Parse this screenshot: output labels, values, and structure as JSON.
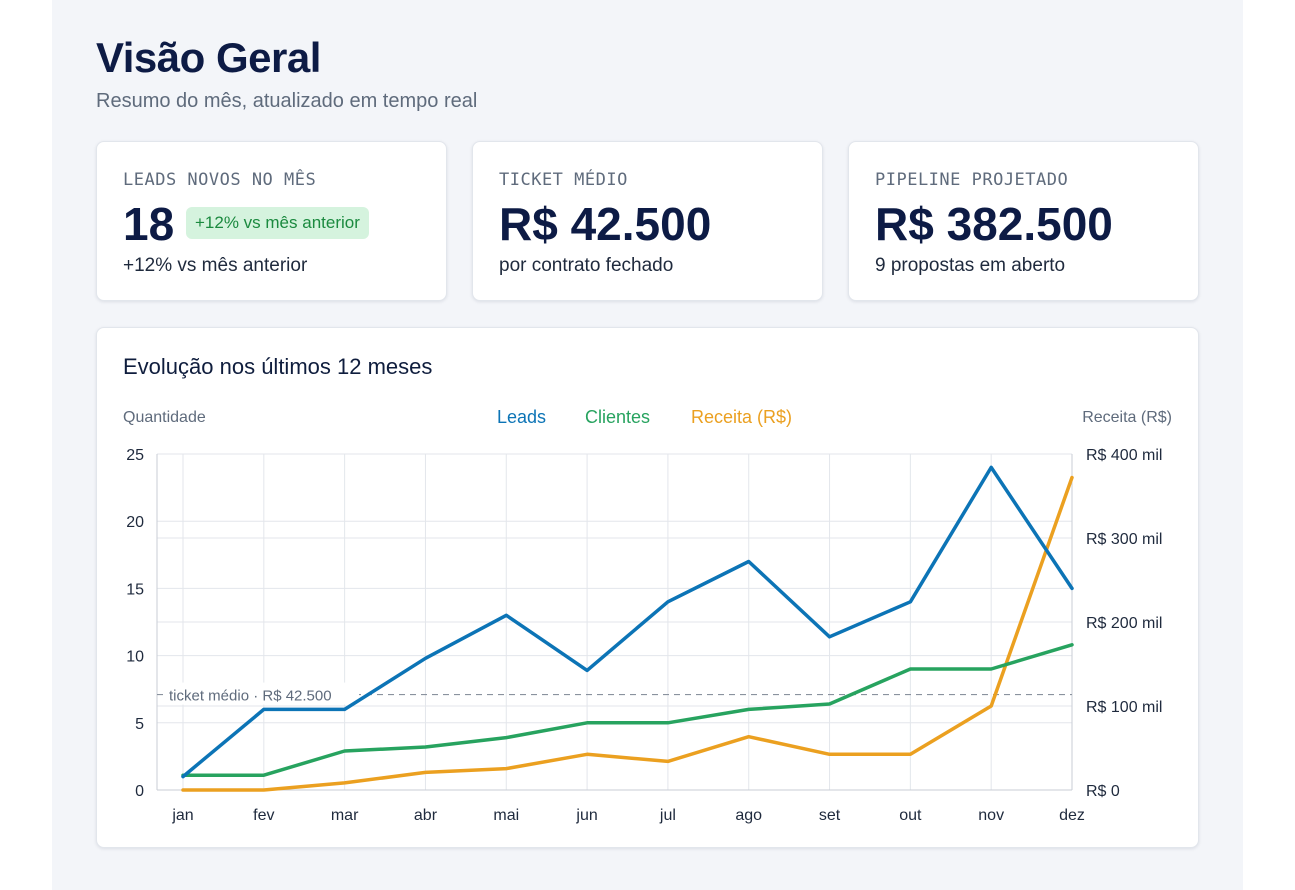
{
  "header": {
    "title": "Visão Geral",
    "subtitle": "Resumo do mês, atualizado em tempo real"
  },
  "kpis": [
    {
      "label": "LEADS NOVOS NO MÊS",
      "value": "18",
      "badge": "+12% vs mês anterior",
      "sub": "+12% vs mês anterior"
    },
    {
      "label": "TICKET MÉDIO",
      "value": "R$ 42.500",
      "sub": "por contrato fechado"
    },
    {
      "label": "PIPELINE PROJETADO",
      "value": "R$ 382.500",
      "sub": "9 propostas em aberto"
    }
  ],
  "colors": {
    "leads": "#0c74b6",
    "clientes": "#27a35f",
    "receita": "#eba020",
    "badge_bg": "#d5f3de",
    "badge_text": "#1b8a3f"
  },
  "chart_data": {
    "type": "line",
    "title": "Evolução nos últimos 12 meses",
    "ylabel_left": "Quantidade",
    "ylabel_right": "Receita (R$)",
    "categories": [
      "jan",
      "fev",
      "mar",
      "abr",
      "mai",
      "jun",
      "jul",
      "ago",
      "set",
      "out",
      "nov",
      "dez"
    ],
    "ylim_left": [
      0,
      25
    ],
    "yticks_left": [
      "0",
      "5",
      "10",
      "15",
      "20",
      "25"
    ],
    "ylim_right": [
      0,
      400000
    ],
    "yticks_right": [
      "R$ 0",
      "R$ 100 mil",
      "R$ 200 mil",
      "R$ 300 mil",
      "R$ 400 mil"
    ],
    "legend_position": "top-center",
    "grid": true,
    "series": [
      {
        "name": "Leads",
        "axis": "left",
        "color": "#0c74b6",
        "values": [
          1,
          6,
          6,
          9.8,
          13,
          8.9,
          14,
          17,
          11.4,
          14,
          24,
          15
        ]
      },
      {
        "name": "Clientes",
        "axis": "left",
        "color": "#27a35f",
        "values": [
          1.1,
          1.1,
          2.9,
          3.2,
          3.9,
          5,
          5,
          6,
          6.4,
          9,
          9,
          10.8
        ]
      },
      {
        "name": "Receita (R$)",
        "axis": "right",
        "color": "#eba020",
        "values": [
          0,
          0,
          8500,
          21000,
          25500,
          42500,
          34000,
          63500,
          42500,
          42500,
          100000,
          372000
        ]
      }
    ],
    "reference_line": {
      "label": "ticket médio · R$ 42.500",
      "axis": "left",
      "value": 7.1
    }
  }
}
